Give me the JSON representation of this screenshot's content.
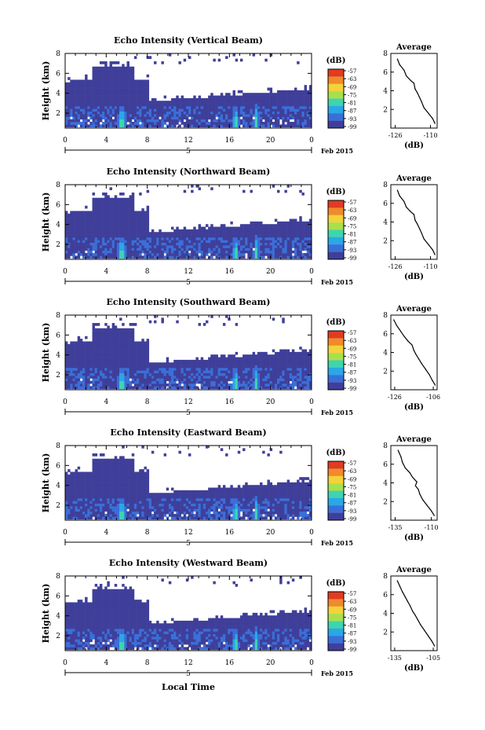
{
  "figure": {
    "xlabel": "Local Time",
    "date_label": "Feb 2015",
    "date_tick_label": "5",
    "colorbar_unit": "(dB)",
    "colorbar_ticks": [
      "-57",
      "-63",
      "-69",
      "-75",
      "-81",
      "-87",
      "-93",
      "-99"
    ],
    "colorbar_colors": [
      "#e03b23",
      "#f08a2a",
      "#f4d23a",
      "#a8e04c",
      "#3fd4b0",
      "#2aa8e6",
      "#3a6fd8",
      "#3f3f9a"
    ],
    "profile_title": "Average",
    "profile_xlabel": "(dB)"
  },
  "chart_data": [
    {
      "type": "heatmap",
      "title": "Echo Intensity (Vertical Beam)",
      "ylabel": "Height (km)",
      "x_ticks": [
        "0",
        "4",
        "8",
        "12",
        "16",
        "20",
        "0"
      ],
      "y_ticks": [
        "2",
        "4",
        "6",
        "8"
      ],
      "xlim": [
        0,
        24
      ],
      "ylim": [
        0.5,
        8
      ],
      "profile": {
        "title": "Average",
        "xlabel": "(dB)",
        "x_ticks": [
          "-126",
          "-110"
        ],
        "xlim": [
          -128,
          -107
        ],
        "y_ticks": [
          "2",
          "4",
          "6",
          "8"
        ],
        "x": [
          -108,
          -109,
          -111,
          -113,
          -114,
          -115,
          -116,
          -117,
          -117.5,
          -119,
          -121,
          -122,
          -124,
          -125
        ],
        "y": [
          0.5,
          1,
          1.6,
          2.2,
          2.8,
          3.3,
          3.8,
          4.2,
          4.8,
          5.1,
          5.6,
          6.2,
          6.8,
          7.4
        ]
      }
    },
    {
      "type": "heatmap",
      "title": "Echo Intensity (Northward Beam)",
      "ylabel": "Height (km)",
      "x_ticks": [
        "0",
        "4",
        "8",
        "12",
        "16",
        "20",
        "0"
      ],
      "y_ticks": [
        "2",
        "4",
        "6",
        "8"
      ],
      "xlim": [
        0,
        24
      ],
      "ylim": [
        0.5,
        8
      ],
      "profile": {
        "title": "Average",
        "xlabel": "(dB)",
        "x_ticks": [
          "-126",
          "-110"
        ],
        "xlim": [
          -128,
          -107
        ],
        "y_ticks": [
          "2",
          "4",
          "6",
          "8"
        ],
        "x": [
          -108,
          -109,
          -111,
          -113,
          -114,
          -115,
          -116,
          -117,
          -117.5,
          -119,
          -121,
          -122,
          -124,
          -125
        ],
        "y": [
          0.5,
          1,
          1.6,
          2.2,
          2.8,
          3.3,
          3.8,
          4.2,
          4.8,
          5.1,
          5.6,
          6.2,
          6.8,
          7.4
        ]
      }
    },
    {
      "type": "heatmap",
      "title": "Echo Intensity (Southward Beam)",
      "ylabel": "Height (km)",
      "x_ticks": [
        "0",
        "4",
        "8",
        "12",
        "16",
        "20",
        "0"
      ],
      "y_ticks": [
        "2",
        "4",
        "6",
        "8"
      ],
      "xlim": [
        0,
        24
      ],
      "ylim": [
        0.5,
        8
      ],
      "profile": {
        "title": "Average",
        "xlabel": "(dB)",
        "x_ticks": [
          "-126",
          "-106"
        ],
        "xlim": [
          -128,
          -104
        ],
        "y_ticks": [
          "2",
          "4",
          "6",
          "8"
        ],
        "x": [
          -105,
          -106.5,
          -108,
          -110,
          -112,
          -113.5,
          -115,
          -116,
          -117,
          -119,
          -121,
          -123,
          -125,
          -126.5
        ],
        "y": [
          0.5,
          1,
          1.6,
          2.2,
          2.8,
          3.3,
          3.8,
          4.2,
          4.8,
          5.2,
          5.7,
          6.3,
          6.9,
          7.5
        ]
      }
    },
    {
      "type": "heatmap",
      "title": "Echo Intensity (Eastward Beam)",
      "ylabel": "Height (km)",
      "x_ticks": [
        "0",
        "4",
        "8",
        "12",
        "16",
        "20",
        "0"
      ],
      "y_ticks": [
        "2",
        "4",
        "6",
        "8"
      ],
      "xlim": [
        0,
        24
      ],
      "ylim": [
        0.5,
        8
      ],
      "profile": {
        "title": "Average",
        "xlabel": "(dB)",
        "x_ticks": [
          "-135",
          "-110"
        ],
        "xlim": [
          -138,
          -106
        ],
        "y_ticks": [
          "2",
          "4",
          "6",
          "8"
        ],
        "x": [
          -108,
          -110,
          -113,
          -116,
          -118,
          -119,
          -121,
          -120,
          -123,
          -125,
          -128,
          -130,
          -131,
          -133
        ],
        "y": [
          0.5,
          1,
          1.6,
          2.2,
          2.8,
          3.3,
          3.7,
          4.1,
          4.6,
          5.1,
          5.6,
          6.2,
          6.8,
          7.5
        ]
      }
    },
    {
      "type": "heatmap",
      "title": "Echo Intensity (Westward Beam)",
      "ylabel": "Height (km)",
      "x_ticks": [
        "0",
        "4",
        "8",
        "12",
        "16",
        "20",
        "0"
      ],
      "y_ticks": [
        "2",
        "4",
        "6",
        "8"
      ],
      "xlim": [
        0,
        24
      ],
      "ylim": [
        0.5,
        8
      ],
      "profile": {
        "title": "Average",
        "xlabel": "(dB)",
        "x_ticks": [
          "-135",
          "-105"
        ],
        "xlim": [
          -138,
          -102
        ],
        "y_ticks": [
          "2",
          "4",
          "6",
          "8"
        ],
        "x": [
          -104,
          -106,
          -109,
          -112,
          -115,
          -117,
          -119,
          -121,
          -123,
          -125,
          -127,
          -129,
          -131,
          -133
        ],
        "y": [
          0.5,
          1,
          1.6,
          2.2,
          2.8,
          3.3,
          3.8,
          4.2,
          4.8,
          5.3,
          5.8,
          6.3,
          6.9,
          7.5
        ]
      }
    }
  ]
}
